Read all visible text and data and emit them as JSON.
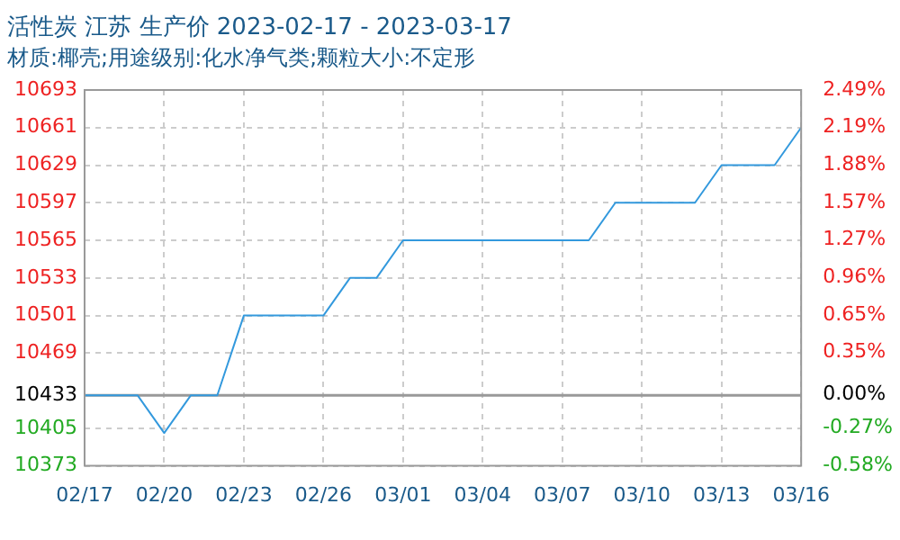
{
  "chart_data": {
    "type": "line",
    "title": "活性炭 江苏 生产价 2023-02-17 - 2023-03-17",
    "subtitle": "材质:椰壳;用途级别:化水净气类;颗粒大小:不定形",
    "x": [
      "2023-02-17",
      "2023-02-18",
      "2023-02-19",
      "2023-02-20",
      "2023-02-21",
      "2023-02-22",
      "2023-02-23",
      "2023-02-24",
      "2023-02-25",
      "2023-02-26",
      "2023-02-27",
      "2023-02-28",
      "2023-03-01",
      "2023-03-02",
      "2023-03-03",
      "2023-03-04",
      "2023-03-05",
      "2023-03-06",
      "2023-03-07",
      "2023-03-08",
      "2023-03-09",
      "2023-03-10",
      "2023-03-11",
      "2023-03-12",
      "2023-03-13",
      "2023-03-14",
      "2023-03-15",
      "2023-03-16"
    ],
    "series": [
      {
        "color": "#3399dd",
        "values": [
          10433,
          10433,
          10433,
          10401,
          10433,
          10433,
          10501,
          10501,
          10501,
          10501,
          10533,
          10533,
          10565,
          10565,
          10565,
          10565,
          10565,
          10565,
          10565,
          10565,
          10597,
          10597,
          10597,
          10597,
          10629,
          10629,
          10629,
          10661
        ]
      }
    ],
    "xlim": [
      "2023-02-17",
      "2023-03-16"
    ],
    "xticks": [
      {
        "value": "2023-02-17",
        "label": "02/17"
      },
      {
        "value": "2023-02-20",
        "label": "02/20"
      },
      {
        "value": "2023-02-23",
        "label": "02/23"
      },
      {
        "value": "2023-02-26",
        "label": "02/26"
      },
      {
        "value": "2023-03-01",
        "label": "03/01"
      },
      {
        "value": "2023-03-04",
        "label": "03/04"
      },
      {
        "value": "2023-03-07",
        "label": "03/07"
      },
      {
        "value": "2023-03-10",
        "label": "03/10"
      },
      {
        "value": "2023-03-13",
        "label": "03/13"
      },
      {
        "value": "2023-03-16",
        "label": "03/16"
      }
    ],
    "ylim": [
      10373,
      10693
    ],
    "yticks": [
      10373,
      10405,
      10433,
      10469,
      10501,
      10533,
      10565,
      10597,
      10629,
      10661,
      10693
    ],
    "y2lim": [
      -0.58,
      2.49
    ],
    "y2ticks": [
      {
        "value": -0.58,
        "label": "-0.58%"
      },
      {
        "value": -0.27,
        "label": "-0.27%"
      },
      {
        "value": 0,
        "label": "0.00%"
      },
      {
        "value": 0.35,
        "label": "0.35%"
      },
      {
        "value": 0.65,
        "label": "0.65%"
      },
      {
        "value": 0.96,
        "label": "0.96%"
      },
      {
        "value": 1.27,
        "label": "1.27%"
      },
      {
        "value": 1.57,
        "label": "1.57%"
      },
      {
        "value": 1.88,
        "label": "1.88%"
      },
      {
        "value": 2.19,
        "label": "2.19%"
      },
      {
        "value": 2.49,
        "label": "2.49%"
      }
    ],
    "ref_lines": [
      {
        "axis": "y",
        "value": 10433,
        "color": "#999999"
      }
    ],
    "grid": true,
    "legend": false,
    "marker": "none",
    "line_style": "solid"
  }
}
